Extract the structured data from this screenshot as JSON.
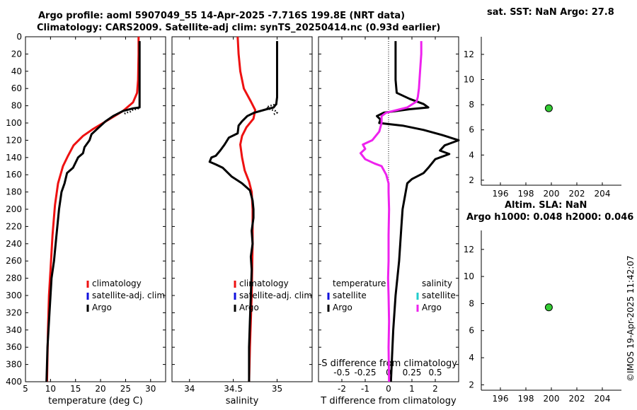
{
  "title": {
    "line1": "Argo profile: aoml 5907049_55 14-Apr-2025 -7.716S 199.8E (NRT data)",
    "line2": "Climatology: CARS2009. Satellite-adj clim: synTS_20250414.nc (0.93d earlier)"
  },
  "stamp": "©IMOS 19-Apr-2025 11:42:07",
  "colors": {
    "climatology": "#ee1111",
    "satellite": "#1111dd",
    "argo": "#000000",
    "sat_salinity": "#22cccc",
    "argo_salinity": "#ee22ee",
    "marker": "#33cc33"
  },
  "chart_data": [
    {
      "id": "temperature",
      "type": "line",
      "xlabel": "temperature (deg C)",
      "xlim": [
        5,
        33
      ],
      "xticks": [
        5,
        10,
        15,
        20,
        25,
        30
      ],
      "ylim": [
        0,
        400
      ],
      "yticks": [
        0,
        20,
        40,
        60,
        80,
        100,
        120,
        140,
        160,
        180,
        200,
        220,
        240,
        260,
        280,
        300,
        320,
        340,
        360,
        380,
        400
      ],
      "legend": [
        "climatology",
        "satellite-adj. clim",
        "Argo"
      ],
      "series": [
        {
          "name": "climatology",
          "color": "red",
          "points": [
            [
              27.6,
              0
            ],
            [
              27.6,
              20
            ],
            [
              27.5,
              50
            ],
            [
              27.3,
              65
            ],
            [
              26.5,
              76
            ],
            [
              24.5,
              86
            ],
            [
              22.5,
              93
            ],
            [
              20.5,
              100
            ],
            [
              18.5,
              107
            ],
            [
              16.5,
              115
            ],
            [
              14.6,
              126
            ],
            [
              13.5,
              138
            ],
            [
              12.5,
              150
            ],
            [
              11.5,
              170
            ],
            [
              10.9,
              195
            ],
            [
              10.4,
              230
            ],
            [
              10.0,
              270
            ],
            [
              9.7,
              300
            ],
            [
              9.5,
              340
            ],
            [
              9.3,
              400
            ]
          ]
        },
        {
          "name": "Argo",
          "color": "black",
          "points": [
            [
              27.8,
              5
            ],
            [
              27.8,
              20
            ],
            [
              27.8,
              50
            ],
            [
              27.8,
              70
            ],
            [
              27.8,
              82
            ],
            [
              26.5,
              83
            ],
            [
              24.5,
              86
            ],
            [
              22.5,
              92
            ],
            [
              21.0,
              98
            ],
            [
              19.5,
              106
            ],
            [
              18.2,
              113
            ],
            [
              17.8,
              120
            ],
            [
              16.8,
              128
            ],
            [
              16.5,
              135
            ],
            [
              15.5,
              140
            ],
            [
              14.5,
              152
            ],
            [
              13.3,
              158
            ],
            [
              12.8,
              170
            ],
            [
              12.2,
              180
            ],
            [
              11.7,
              200
            ],
            [
              11.2,
              230
            ],
            [
              10.7,
              260
            ],
            [
              10.2,
              280
            ],
            [
              9.8,
              320
            ],
            [
              9.4,
              360
            ],
            [
              9.2,
              400
            ]
          ]
        },
        {
          "name": "Argo dotted",
          "color": "black",
          "dotted": true,
          "points": [
            [
              27.6,
              83
            ],
            [
              27.0,
              84
            ],
            [
              26.4,
              85
            ],
            [
              25.9,
              87
            ],
            [
              25.2,
              88
            ],
            [
              24.5,
              90
            ]
          ]
        }
      ]
    },
    {
      "id": "salinity",
      "type": "line",
      "xlabel": "salinity",
      "xlim": [
        33.8,
        35.4
      ],
      "xticks": [
        34,
        34.5,
        35
      ],
      "xticklabels": [
        "34",
        "34.5",
        "35"
      ],
      "ylim": [
        0,
        400
      ],
      "legend": [
        "climatology",
        "satellite-adj. clim",
        "Argo"
      ],
      "series": [
        {
          "name": "climatology",
          "color": "red",
          "points": [
            [
              34.55,
              0
            ],
            [
              34.56,
              20
            ],
            [
              34.58,
              40
            ],
            [
              34.62,
              60
            ],
            [
              34.7,
              75
            ],
            [
              34.75,
              85
            ],
            [
              34.73,
              95
            ],
            [
              34.65,
              105
            ],
            [
              34.6,
              115
            ],
            [
              34.58,
              125
            ],
            [
              34.6,
              140
            ],
            [
              34.63,
              155
            ],
            [
              34.68,
              168
            ],
            [
              34.71,
              180
            ],
            [
              34.72,
              200
            ],
            [
              34.72,
              240
            ],
            [
              34.71,
              300
            ],
            [
              34.69,
              360
            ],
            [
              34.68,
              400
            ]
          ]
        },
        {
          "name": "Argo",
          "color": "black",
          "points": [
            [
              35.0,
              5
            ],
            [
              35.0,
              20
            ],
            [
              35.0,
              50
            ],
            [
              35.0,
              70
            ],
            [
              34.99,
              78
            ],
            [
              34.96,
              82
            ],
            [
              34.88,
              84
            ],
            [
              34.74,
              88
            ],
            [
              34.66,
              92
            ],
            [
              34.6,
              98
            ],
            [
              34.56,
              103
            ],
            [
              34.55,
              112
            ],
            [
              34.45,
              117
            ],
            [
              34.4,
              125
            ],
            [
              34.35,
              132
            ],
            [
              34.3,
              138
            ],
            [
              34.25,
              140
            ],
            [
              34.23,
              145
            ],
            [
              34.3,
              148
            ],
            [
              34.38,
              152
            ],
            [
              34.48,
              162
            ],
            [
              34.6,
              170
            ],
            [
              34.69,
              178
            ],
            [
              34.72,
              190
            ],
            [
              34.73,
              200
            ],
            [
              34.73,
              210
            ],
            [
              34.71,
              225
            ],
            [
              34.72,
              240
            ],
            [
              34.7,
              255
            ],
            [
              34.71,
              270
            ],
            [
              34.7,
              300
            ],
            [
              34.69,
              330
            ],
            [
              34.68,
              360
            ],
            [
              34.68,
              400
            ]
          ]
        },
        {
          "name": "Argo dotted",
          "color": "black",
          "dotted": true,
          "points": [
            [
              35.0,
              78
            ],
            [
              34.92,
              80
            ],
            [
              34.88,
              82
            ],
            [
              34.92,
              84
            ],
            [
              34.98,
              86
            ],
            [
              35.0,
              88
            ],
            [
              34.96,
              90
            ]
          ]
        }
      ]
    },
    {
      "id": "difference",
      "type": "line",
      "xlabel": "T difference from climatology",
      "xlim": [
        -3,
        3
      ],
      "xticks": [
        -2,
        -1,
        0,
        1,
        2
      ],
      "topaxis_label": "S difference from climatology",
      "topaxis_ticklabels": [
        "-0.5",
        "-0.25",
        "0",
        "0.25",
        "0.5"
      ],
      "ylim": [
        0,
        400
      ],
      "legend_temperature": {
        "header": "temperature",
        "items": [
          "satellite",
          "Argo"
        ]
      },
      "legend_salinity": {
        "header": "salinity",
        "items": [
          "satellite",
          "Argo"
        ]
      },
      "series": [
        {
          "name": "temperature Argo",
          "color": "black",
          "points": [
            [
              0.3,
              5
            ],
            [
              0.3,
              20
            ],
            [
              0.3,
              50
            ],
            [
              0.35,
              65
            ],
            [
              0.9,
              72
            ],
            [
              1.5,
              78
            ],
            [
              1.7,
              82
            ],
            [
              0.9,
              84
            ],
            [
              -0.2,
              88
            ],
            [
              -0.5,
              92
            ],
            [
              -0.35,
              96
            ],
            [
              -0.4,
              100
            ],
            [
              0.6,
              103
            ],
            [
              1.5,
              108
            ],
            [
              2.3,
              114
            ],
            [
              3.0,
              120
            ],
            [
              2.4,
              126
            ],
            [
              2.2,
              132
            ],
            [
              2.6,
              136
            ],
            [
              2.0,
              142
            ],
            [
              1.7,
              152
            ],
            [
              1.5,
              158
            ],
            [
              1.0,
              165
            ],
            [
              0.8,
              170
            ],
            [
              0.7,
              185
            ],
            [
              0.6,
              200
            ],
            [
              0.55,
              220
            ],
            [
              0.5,
              240
            ],
            [
              0.45,
              260
            ],
            [
              0.3,
              300
            ],
            [
              0.2,
              340
            ],
            [
              0.1,
              400
            ]
          ]
        },
        {
          "name": "salinity Argo",
          "color": "magenta",
          "points": [
            [
              1.4,
              5
            ],
            [
              1.4,
              20
            ],
            [
              1.35,
              40
            ],
            [
              1.3,
              60
            ],
            [
              1.25,
              70
            ],
            [
              1.2,
              75
            ],
            [
              0.8,
              82
            ],
            [
              -0.1,
              88
            ],
            [
              -0.3,
              92
            ],
            [
              -0.3,
              100
            ],
            [
              -0.4,
              110
            ],
            [
              -0.7,
              120
            ],
            [
              -1.1,
              125
            ],
            [
              -1.0,
              130
            ],
            [
              -1.2,
              135
            ],
            [
              -1.0,
              142
            ],
            [
              -0.6,
              147
            ],
            [
              -0.3,
              150
            ],
            [
              -0.1,
              160
            ],
            [
              0.0,
              170
            ],
            [
              0.0,
              180
            ],
            [
              0.02,
              200
            ],
            [
              0.0,
              230
            ],
            [
              0.0,
              260
            ],
            [
              -0.02,
              280
            ],
            [
              0.0,
              300
            ],
            [
              0.02,
              330
            ],
            [
              0.0,
              360
            ],
            [
              0.02,
              400
            ]
          ]
        }
      ]
    },
    {
      "id": "sat_sst",
      "type": "scatter",
      "title": "sat. SST: NaN Argo: 27.8",
      "xlim": [
        194.5,
        205.5
      ],
      "xticks": [
        196,
        198,
        200,
        202,
        204
      ],
      "ylim": [
        1.6,
        13.4
      ],
      "yticks": [
        2,
        4,
        6,
        8,
        10,
        12
      ],
      "points": [
        [
          199.8,
          7.72
        ]
      ]
    },
    {
      "id": "altim_sla",
      "type": "scatter",
      "title": "Altim. SLA: NaN",
      "title2": "Argo h1000: 0.048 h2000: 0.046",
      "xlim": [
        194.5,
        205.5
      ],
      "xticks": [
        196,
        198,
        200,
        202,
        204
      ],
      "ylim": [
        1.6,
        13.4
      ],
      "yticks": [
        2,
        4,
        6,
        8,
        10,
        12
      ],
      "points": [
        [
          199.8,
          7.72
        ]
      ]
    }
  ]
}
